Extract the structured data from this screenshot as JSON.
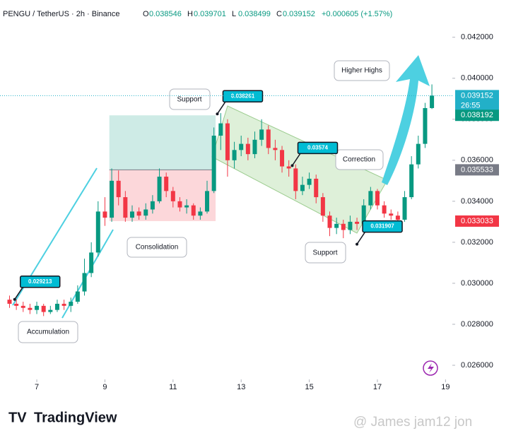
{
  "header": {
    "symbol": "PENGU / TetherUS · 2h · Binance",
    "ohlc_labels": [
      "O",
      "H",
      "L",
      "C"
    ],
    "change": "+0.000605 (+1.57%)"
  },
  "chart_data": {
    "type": "candlestick",
    "x": [
      6.2,
      6.4,
      6.6,
      6.8,
      7.0,
      7.2,
      7.4,
      7.6,
      7.8,
      8.0,
      8.2,
      8.4,
      8.6,
      8.8,
      9.0,
      9.2,
      9.4,
      9.6,
      9.8,
      10.0,
      10.2,
      10.4,
      10.6,
      10.8,
      11.0,
      11.2,
      11.4,
      11.6,
      11.8,
      12.0,
      12.2,
      12.4,
      12.6,
      12.8,
      13.0,
      13.2,
      13.4,
      13.6,
      13.8,
      14.0,
      14.2,
      14.4,
      14.6,
      14.8,
      15.0,
      15.2,
      15.4,
      15.6,
      15.8,
      16.0,
      16.2,
      16.4,
      16.6,
      16.8,
      17.0,
      17.2,
      17.4,
      17.6,
      17.8,
      18.0,
      18.2,
      18.4,
      18.6
    ],
    "open": [
      0.0292,
      0.029,
      0.0289,
      0.0288,
      0.0287,
      0.0289,
      0.0286,
      0.0287,
      0.029,
      0.0289,
      0.0291,
      0.0296,
      0.0305,
      0.0315,
      0.0335,
      0.0332,
      0.035,
      0.0342,
      0.0332,
      0.0335,
      0.0333,
      0.0336,
      0.034,
      0.0352,
      0.0345,
      0.034,
      0.0337,
      0.0338,
      0.0333,
      0.0335,
      0.0345,
      0.0372,
      0.0378,
      0.036,
      0.0365,
      0.0368,
      0.0363,
      0.037,
      0.0375,
      0.0366,
      0.0365,
      0.0357,
      0.0356,
      0.0345,
      0.0348,
      0.0351,
      0.0342,
      0.0333,
      0.0327,
      0.0329,
      0.0326,
      0.033,
      0.0329,
      0.0338,
      0.0345,
      0.0338,
      0.0334,
      0.0333,
      0.0331,
      0.0342,
      0.0358,
      0.0368,
      0.038546
    ],
    "high": [
      0.0294,
      0.0292,
      0.0291,
      0.029,
      0.0291,
      0.029,
      0.0289,
      0.0292,
      0.0292,
      0.0293,
      0.0299,
      0.0312,
      0.032,
      0.034,
      0.0342,
      0.0356,
      0.0355,
      0.0345,
      0.0338,
      0.0337,
      0.0339,
      0.0343,
      0.0356,
      0.0354,
      0.0347,
      0.0342,
      0.0341,
      0.0339,
      0.0337,
      0.035,
      0.0376,
      0.0383,
      0.038,
      0.0369,
      0.0372,
      0.0371,
      0.0374,
      0.038,
      0.0377,
      0.037,
      0.0367,
      0.036,
      0.0358,
      0.0352,
      0.0354,
      0.0353,
      0.0344,
      0.0335,
      0.0332,
      0.0331,
      0.0333,
      0.0332,
      0.0341,
      0.0347,
      0.0346,
      0.034,
      0.0336,
      0.0335,
      0.0345,
      0.0362,
      0.0372,
      0.0388,
      0.039701
    ],
    "low": [
      0.0288,
      0.0287,
      0.0286,
      0.0285,
      0.0285,
      0.0284,
      0.0285,
      0.0286,
      0.0287,
      0.0286,
      0.029,
      0.0294,
      0.0303,
      0.0313,
      0.0328,
      0.033,
      0.0338,
      0.033,
      0.033,
      0.0331,
      0.0331,
      0.0334,
      0.0339,
      0.0342,
      0.0337,
      0.0335,
      0.0334,
      0.0331,
      0.0331,
      0.0334,
      0.0344,
      0.0365,
      0.0352,
      0.0356,
      0.0362,
      0.036,
      0.0361,
      0.0367,
      0.0363,
      0.036,
      0.0354,
      0.0352,
      0.0341,
      0.0343,
      0.0346,
      0.0339,
      0.033,
      0.0323,
      0.0324,
      0.0322,
      0.0324,
      0.0326,
      0.0327,
      0.0336,
      0.0336,
      0.0332,
      0.0331,
      0.0329,
      0.033,
      0.0341,
      0.0356,
      0.0366,
      0.038499
    ],
    "close": [
      0.029,
      0.0289,
      0.0288,
      0.0287,
      0.0289,
      0.0286,
      0.0287,
      0.029,
      0.0289,
      0.0291,
      0.0296,
      0.0305,
      0.0315,
      0.0335,
      0.0332,
      0.035,
      0.0342,
      0.0332,
      0.0335,
      0.0333,
      0.0336,
      0.034,
      0.0352,
      0.0345,
      0.034,
      0.0337,
      0.0338,
      0.0333,
      0.0335,
      0.0345,
      0.0372,
      0.0378,
      0.036,
      0.0365,
      0.0368,
      0.0363,
      0.037,
      0.0375,
      0.0366,
      0.0365,
      0.0357,
      0.0356,
      0.0345,
      0.0348,
      0.0351,
      0.0342,
      0.0333,
      0.0327,
      0.0329,
      0.0326,
      0.033,
      0.0329,
      0.0338,
      0.0345,
      0.0338,
      0.0334,
      0.0333,
      0.0331,
      0.0342,
      0.0358,
      0.0368,
      0.038546,
      0.039152
    ],
    "up_color": "#089981",
    "down_color": "#f23645",
    "last_price_color": "#22b0c8",
    "xlim": [
      5.92,
      19.2
    ],
    "xticks": [
      7,
      9,
      11,
      13,
      15,
      17,
      19
    ],
    "ylim": [
      0.02538,
      0.0433
    ],
    "yticks": [
      {
        "value": 0.026,
        "label": "0.026000"
      },
      {
        "value": 0.028,
        "label": "0.028000"
      },
      {
        "value": 0.03,
        "label": "0.030000"
      },
      {
        "value": 0.032,
        "label": "0.032000"
      },
      {
        "value": 0.034,
        "label": "0.034000"
      },
      {
        "value": 0.036,
        "label": "0.036000"
      },
      {
        "value": 0.038,
        "label": "0.038000"
      },
      {
        "value": 0.04,
        "label": "0.040000"
      },
      {
        "value": 0.042,
        "label": "0.042000"
      }
    ],
    "countdown": "26:55",
    "position": {
      "x_start": 9.13,
      "x_end": 12.25,
      "target": 0.038192,
      "entry": 0.035533,
      "stop": 0.033033
    },
    "callouts": [
      {
        "x": 6.35,
        "y": 0.029213
      },
      {
        "x": 12.3,
        "y": 0.038261
      },
      {
        "x": 14.5,
        "y": 0.03574
      },
      {
        "x": 16.4,
        "y": 0.031907
      }
    ],
    "notes": [
      "Accumulation",
      "Consolidation",
      "Support",
      "Correction",
      "Support",
      "Higher Highs"
    ]
  },
  "branding": {
    "logo": "TradingView",
    "watermark": "@ James jam12 jon"
  }
}
